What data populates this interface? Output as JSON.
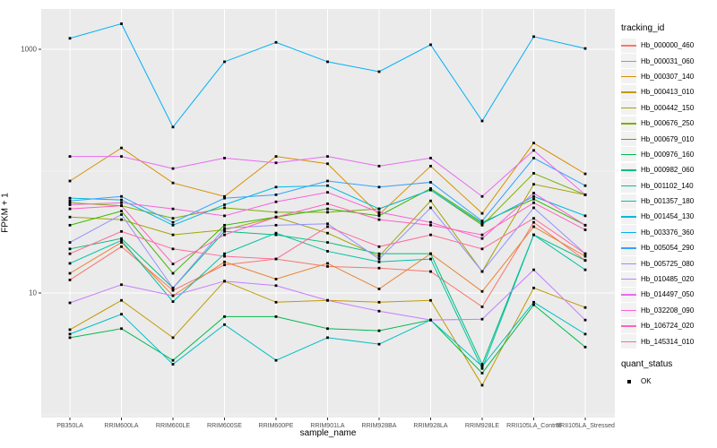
{
  "figure": {
    "bg": "#FFFFFF",
    "panel_bg": "#EBEBEB",
    "grid_color": "#FFFFFF",
    "axis_text_color": "#4D4D4D",
    "point_color": "#000000"
  },
  "chart_data": {
    "type": "line",
    "title": "",
    "xlabel": "sample_name",
    "ylabel": "FPKM + 1",
    "y_scale": "log10",
    "y_ticks": [
      1000,
      10
    ],
    "y_tick_labels": [
      "1000",
      "10"
    ],
    "y_minor_breaks": [
      100,
      1
    ],
    "ylim": [
      0.95,
      2140
    ],
    "grid": true,
    "legend_position": "right",
    "categories": [
      "PB350LA",
      "RRIM600LA",
      "RRIM600LE",
      "RRIM600SE",
      "RRIM600PE",
      "RRIM901LA",
      "RRIM928BA",
      "RRIM928LA",
      "RRIM928LE",
      "RRII105LA_Control",
      "RRII105LA_Stressed"
    ],
    "legend": {
      "title": "tracking_id"
    },
    "quant_legend": {
      "title": "quant_status",
      "items": [
        {
          "label": "OK",
          "shape": "square",
          "color": "#000000"
        }
      ]
    },
    "series": [
      {
        "name": "Hb_000000_460",
        "color": "#F8766D",
        "values": [
          12.8,
          24,
          10.5,
          17,
          19,
          16.5,
          16,
          15,
          7.7,
          38,
          18.5
        ]
      },
      {
        "name": "Hb_000031_060",
        "color": "#EA8331",
        "values": [
          14.5,
          26,
          9.5,
          18,
          13,
          17.5,
          10.8,
          21,
          10.3,
          35,
          20
        ]
      },
      {
        "name": "Hb_000307_140",
        "color": "#D89000",
        "values": [
          83,
          155,
          80,
          62,
          132,
          115,
          44,
          110,
          45,
          170,
          95
        ]
      },
      {
        "name": "Hb_000413_010",
        "color": "#C09B00",
        "values": [
          5.0,
          8.7,
          4.3,
          12.5,
          8.4,
          8.7,
          8.4,
          8.7,
          1.75,
          11,
          7.6
        ]
      },
      {
        "name": "Hb_000442_150",
        "color": "#A3A500",
        "values": [
          42,
          40,
          30,
          33,
          42,
          31,
          20,
          57,
          15,
          78,
          64
        ]
      },
      {
        "name": "Hb_000676_250",
        "color": "#7CAE00",
        "values": [
          55,
          52,
          41,
          50,
          46,
          46,
          49,
          70,
          36,
          96,
          64
        ]
      },
      {
        "name": "Hb_000679_010",
        "color": "#39B600",
        "values": [
          36,
          47,
          14.5,
          36,
          42,
          49,
          43,
          72,
          38,
          59,
          36
        ]
      },
      {
        "name": "Hb_000976_160",
        "color": "#00BB4E",
        "values": [
          4.3,
          5.1,
          2.8,
          6.4,
          6.4,
          5.1,
          4.9,
          6.0,
          2.2,
          8.0,
          3.6
        ]
      },
      {
        "name": "Hb_000982_060",
        "color": "#00BF7D",
        "values": [
          23,
          28,
          11,
          32,
          30,
          26,
          21,
          21,
          2.6,
          30,
          18.5
        ]
      },
      {
        "name": "Hb_001102_140",
        "color": "#00C1A3",
        "values": [
          17.5,
          27,
          8.5,
          21,
          31,
          22,
          18,
          19,
          2.4,
          30,
          15.5
        ]
      },
      {
        "name": "Hb_001357_180",
        "color": "#00BFC4",
        "values": [
          4.6,
          6.7,
          2.6,
          5.5,
          2.8,
          4.3,
          3.8,
          6.0,
          2.5,
          8.4,
          4.6
        ]
      },
      {
        "name": "Hb_001454_130",
        "color": "#00BAE0",
        "values": [
          60,
          58,
          36,
          53,
          74,
          76,
          49,
          70,
          37,
          62,
          43
        ]
      },
      {
        "name": "Hb_003376_360",
        "color": "#00B0F6",
        "values": [
          1230,
          1620,
          230,
          790,
          1140,
          790,
          655,
          1090,
          258,
          1270,
          1015
        ]
      },
      {
        "name": "Hb_005054_290",
        "color": "#35A2FF",
        "values": [
          57,
          62,
          38,
          60,
          64,
          83,
          74,
          81,
          39,
          128,
          76
        ]
      },
      {
        "name": "Hb_005725_080",
        "color": "#9590FF",
        "values": [
          26,
          44,
          11,
          34,
          36,
          37,
          19,
          50,
          15,
          50,
          21
        ]
      },
      {
        "name": "Hb_010485_020",
        "color": "#C77CFF",
        "values": [
          8.3,
          11.7,
          9.5,
          12.5,
          11.5,
          8.7,
          7.1,
          6.0,
          6.1,
          15.5,
          6.0
        ]
      },
      {
        "name": "Hb_014497_050",
        "color": "#E76BF3",
        "values": [
          132,
          132,
          105,
          128,
          117,
          132,
          110,
          128,
          62,
          148,
          64
        ]
      },
      {
        "name": "Hb_032208_090",
        "color": "#FA62DB",
        "values": [
          53,
          55,
          49,
          43,
          56,
          67,
          46,
          38,
          28,
          66,
          36
        ]
      },
      {
        "name": "Hb_106724_020",
        "color": "#FF62BC",
        "values": [
          49,
          52,
          17.3,
          30,
          42,
          54,
          40,
          36,
          30,
          55,
          33
        ]
      },
      {
        "name": "Hb_145314_010",
        "color": "#FF6A98",
        "values": [
          21,
          32,
          23,
          20,
          19,
          35,
          24,
          30,
          23,
          41,
          21
        ]
      }
    ]
  }
}
